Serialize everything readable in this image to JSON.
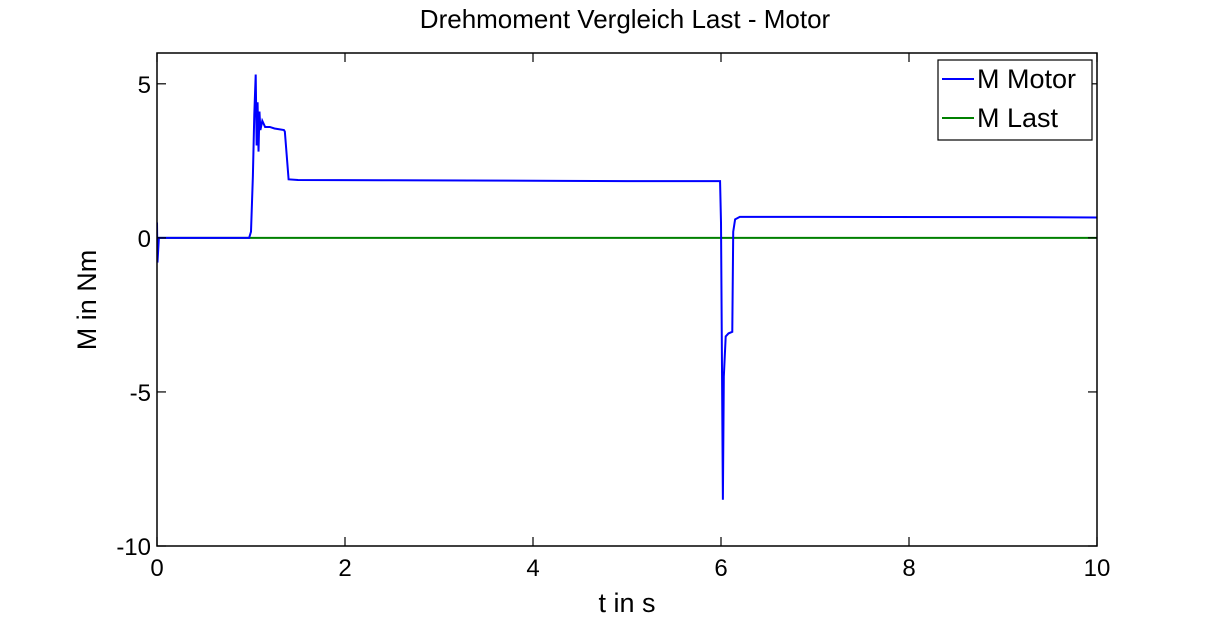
{
  "chart_data": {
    "type": "line",
    "title": "Drehmoment Vergleich Last - Motor",
    "xlabel": "t in s",
    "ylabel": "M in Nm",
    "xlim": [
      0,
      10
    ],
    "ylim": [
      -10,
      6
    ],
    "xticks": [
      0,
      2,
      4,
      6,
      8,
      10
    ],
    "yticks": [
      5,
      0,
      -5,
      -10
    ],
    "grid": false,
    "legend_position": "top-right",
    "series": [
      {
        "name": "M Motor",
        "color": "#0000ff",
        "points": [
          [
            0,
            0.5
          ],
          [
            0.005,
            -0.8
          ],
          [
            0.02,
            0
          ],
          [
            0.98,
            0
          ],
          [
            1.0,
            0.2
          ],
          [
            1.02,
            2.0
          ],
          [
            1.035,
            4.0
          ],
          [
            1.05,
            5.3
          ],
          [
            1.06,
            3.0
          ],
          [
            1.07,
            4.4
          ],
          [
            1.08,
            2.8
          ],
          [
            1.09,
            4.1
          ],
          [
            1.1,
            3.5
          ],
          [
            1.12,
            3.8
          ],
          [
            1.15,
            3.6
          ],
          [
            1.2,
            3.6
          ],
          [
            1.25,
            3.55
          ],
          [
            1.35,
            3.5
          ],
          [
            1.36,
            3.45
          ],
          [
            1.4,
            1.9
          ],
          [
            1.5,
            1.88
          ],
          [
            2.5,
            1.87
          ],
          [
            4.3,
            1.85
          ],
          [
            5.0,
            1.84
          ],
          [
            5.99,
            1.84
          ],
          [
            6.0,
            0.5
          ],
          [
            6.02,
            -8.5
          ],
          [
            6.03,
            -4.5
          ],
          [
            6.05,
            -3.2
          ],
          [
            6.08,
            -3.1
          ],
          [
            6.12,
            -3.05
          ],
          [
            6.13,
            0.2
          ],
          [
            6.15,
            0.6
          ],
          [
            6.2,
            0.68
          ],
          [
            7.0,
            0.68
          ],
          [
            9.5,
            0.67
          ],
          [
            10.0,
            0.66
          ]
        ]
      },
      {
        "name": "M Last",
        "color": "#008000",
        "points": [
          [
            0,
            0
          ],
          [
            10,
            0
          ]
        ]
      }
    ]
  }
}
